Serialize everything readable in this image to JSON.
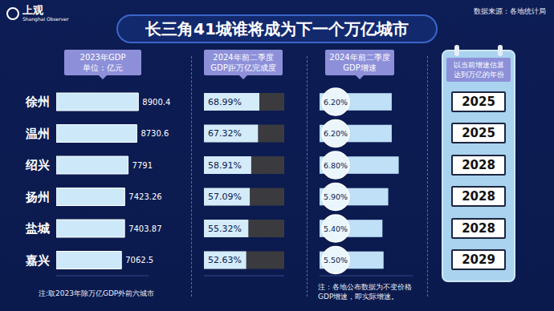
{
  "header": {
    "title": "长三角41城谁将成为下一个万亿城市",
    "logo": "上观",
    "logo_subtitle": "Shanghai Observer",
    "source": "数据来源：各地统计局"
  },
  "chart_data": [
    {
      "type": "bar",
      "orientation": "horizontal",
      "title": "2023年GDP",
      "subtitle": "单位：亿元",
      "categories": [
        "徐州",
        "温州",
        "绍兴",
        "扬州",
        "盐城",
        "嘉兴"
      ],
      "values": [
        8900.4,
        8730.6,
        7791,
        7423.26,
        7403.87,
        7062.5
      ],
      "color": "#cde9f9",
      "xlim": [
        0,
        10000
      ],
      "data_labels": true,
      "tick_labels": "y"
    },
    {
      "type": "bar",
      "orientation": "horizontal",
      "title": "2024年前二季度",
      "subtitle": "GDP距万亿完成度",
      "categories": [
        "徐州",
        "温州",
        "绍兴",
        "扬州",
        "盐城",
        "嘉兴"
      ],
      "values": [
        68.99,
        67.32,
        58.91,
        57.09,
        55.32,
        52.63
      ],
      "value_labels": [
        "68.99%",
        "67.32%",
        "58.91%",
        "57.09%",
        "55.32%",
        "52.63%"
      ],
      "color": "#d4ebfa",
      "xlim": [
        0,
        100
      ],
      "data_labels": true,
      "tick_labels": false
    },
    {
      "type": "bar",
      "orientation": "horizontal",
      "title": "2024年前二季度",
      "subtitle": "GDP增速",
      "categories": [
        "徐州",
        "温州",
        "绍兴",
        "扬州",
        "盐城",
        "嘉兴"
      ],
      "values": [
        6.2,
        6.2,
        6.8,
        5.9,
        5.4,
        5.5
      ],
      "value_labels": [
        "6.20%",
        "6.20%",
        "6.80%",
        "5.90%",
        "5.40%",
        "5.50%"
      ],
      "color": "#bfe0f6",
      "marker": "circle",
      "xlim": [
        0,
        8
      ],
      "data_labels": true,
      "tick_labels": false
    }
  ],
  "years": {
    "title": "以当前增速估算",
    "subtitle": "达到万亿的年份",
    "values": [
      2025,
      2025,
      2028,
      2028,
      2028,
      2029
    ]
  },
  "notes": [
    "注:取2023年除万亿GDP外前六城市",
    "注：各地公布数据为不变价格GDP增速，即实际增速。"
  ]
}
